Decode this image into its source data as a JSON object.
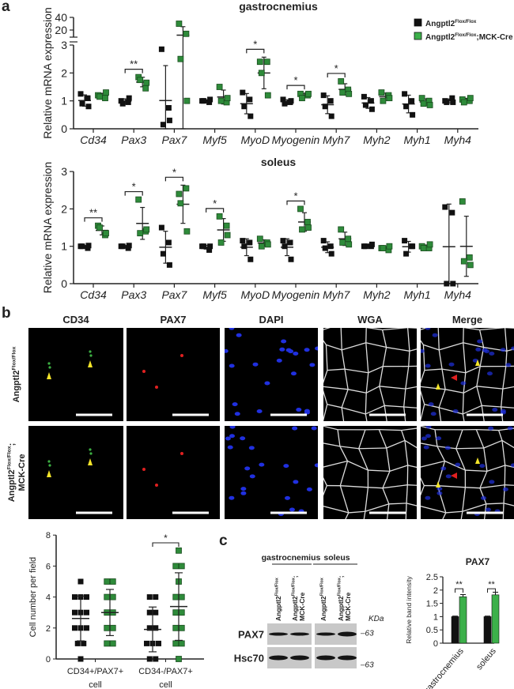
{
  "panel_labels": {
    "a": "a",
    "b": "b",
    "c": "c"
  },
  "colors": {
    "control": "#111111",
    "knockout": "#2e8b3a",
    "knockout_bar": "#3cb04a",
    "cd34": "#3cb043",
    "pax7": "#e02020",
    "dapi": "#1f5fd0",
    "wga": "#aaaaaa",
    "merge": "#111111",
    "arrow_yellow": "#f5e52a",
    "arrow_red": "#e02020"
  },
  "legend": [
    {
      "base": "Angptl2",
      "sup": "Flox/Flox",
      "suffix": ""
    },
    {
      "base": "Angptl2",
      "sup": "Flox/Flox",
      "suffix": ";MCK-Cre"
    }
  ],
  "chart_data": [
    {
      "type": "scatter",
      "title": "gastrocnemius",
      "ylabel": "Relative mRNA expression",
      "yticks": [
        0,
        1,
        2,
        3,
        20,
        40
      ],
      "ylim": [
        0,
        40
      ],
      "axis_break": [
        3,
        10
      ],
      "categories": [
        "Cd34",
        "Pax3",
        "Pax7",
        "Myf5",
        "MyoD",
        "Myogenin",
        "Myh7",
        "Myh2",
        "Myh1",
        "Myh4"
      ],
      "series": [
        {
          "name": "Angptl2 Flox/Flox",
          "values": [
            [
              1.25,
              1.1,
              0.9,
              0.8
            ],
            [
              1.0,
              0.95,
              0.9,
              1.1
            ],
            [
              2.85,
              0.75,
              0.15,
              0.3
            ],
            [
              1.0,
              0.95,
              1.0,
              1.05
            ],
            [
              1.3,
              1.05,
              0.8,
              0.45
            ],
            [
              1.05,
              0.95,
              0.9,
              1.0
            ],
            [
              1.2,
              1.0,
              0.8,
              0.45
            ],
            [
              1.15,
              1.0,
              0.85,
              0.7
            ],
            [
              1.25,
              1.0,
              0.8,
              0.5
            ],
            [
              1.0,
              1.1,
              0.95,
              0.95
            ]
          ]
        },
        {
          "name": "Angptl2 Flox/Flox;MCK-Cre",
          "values": [
            [
              1.2,
              1.1,
              1.15,
              1.3
            ],
            [
              1.85,
              1.45,
              1.75,
              1.65
            ],
            [
              30,
              14,
              2.5,
              1.0
            ],
            [
              1.5,
              0.95,
              1.0,
              1.1
            ],
            [
              2.4,
              2.4,
              2.0,
              1.2
            ],
            [
              1.25,
              1.2,
              1.1,
              1.25
            ],
            [
              1.7,
              1.4,
              1.3,
              1.25
            ],
            [
              1.3,
              1.2,
              1.0,
              1.1
            ],
            [
              1.1,
              1.0,
              0.9,
              0.85
            ],
            [
              1.05,
              1.0,
              0.95,
              1.1
            ]
          ]
        }
      ],
      "significance": [
        {
          "category": "Pax3",
          "label": "**"
        },
        {
          "category": "MyoD",
          "label": "*"
        },
        {
          "category": "Myogenin",
          "label": "*"
        },
        {
          "category": "Myh7",
          "label": "*"
        }
      ]
    },
    {
      "type": "scatter",
      "title": "soleus",
      "ylabel": "Relative mRNA expression",
      "yticks": [
        0,
        1,
        2,
        3
      ],
      "ylim": [
        0,
        3
      ],
      "categories": [
        "Cd34",
        "Pax3",
        "Pax7",
        "Myf5",
        "MyoD",
        "Myogenin",
        "Myh7",
        "Myh2",
        "Myh1",
        "Myh4"
      ],
      "series": [
        {
          "name": "Angptl2 Flox/Flox",
          "values": [
            [
              1.0,
              0.95,
              1.0,
              1.02
            ],
            [
              1.0,
              0.95,
              1.0,
              1.02
            ],
            [
              1.5,
              1.1,
              0.8,
              0.5
            ],
            [
              1.0,
              0.9,
              1.0,
              1.0
            ],
            [
              1.15,
              1.1,
              1.0,
              0.65
            ],
            [
              1.15,
              1.1,
              1.0,
              0.65
            ],
            [
              1.15,
              1.0,
              0.95,
              0.8
            ],
            [
              1.0,
              1.0,
              1.0,
              1.05
            ],
            [
              1.15,
              1.0,
              0.8,
              1.0
            ],
            [
              2.05,
              1.9,
              0.0,
              0.0
            ]
          ]
        },
        {
          "name": "Angptl2 Flox/Flox;MCK-Cre",
          "values": [
            [
              1.55,
              1.3,
              1.5,
              1.35
            ],
            [
              2.25,
              1.4,
              1.35,
              1.45
            ],
            [
              2.4,
              2.55,
              2.15,
              1.4
            ],
            [
              1.8,
              1.55,
              1.1,
              1.3
            ],
            [
              1.2,
              1.1,
              1.0,
              1.05
            ],
            [
              2.0,
              1.65,
              1.45,
              1.5
            ],
            [
              1.45,
              1.2,
              1.1,
              1.05
            ],
            [
              0.95,
              0.9,
              0.95,
              1.0
            ],
            [
              1.0,
              0.95,
              0.95,
              1.05
            ],
            [
              2.2,
              0.7,
              0.6,
              0.5
            ]
          ]
        }
      ],
      "significance": [
        {
          "category": "Cd34",
          "label": "**"
        },
        {
          "category": "Pax3",
          "label": "*"
        },
        {
          "category": "Pax7",
          "label": "*"
        },
        {
          "category": "Myf5",
          "label": "*"
        },
        {
          "category": "Myogenin",
          "label": "*"
        }
      ]
    },
    {
      "type": "scatter",
      "ylabel": "Cell number per field",
      "yticks": [
        0,
        2,
        4,
        6,
        8
      ],
      "ylim": [
        0,
        8
      ],
      "categories": [
        "CD34+/PAX7+\ncell",
        "CD34-/PAX7+\ncell"
      ],
      "series": [
        {
          "name": "Angptl2 Flox/Flox",
          "values": [
            [
              0,
              1,
              1,
              2,
              2,
              2,
              3,
              3,
              3,
              4,
              4,
              4,
              5
            ],
            [
              0,
              0,
              1,
              1,
              1,
              2,
              2,
              3,
              3,
              4,
              4
            ]
          ]
        },
        {
          "name": "Angptl2 Flox/Flox;MCK-Cre",
          "values": [
            [
              1,
              1,
              2,
              2,
              3,
              3,
              4,
              4,
              5,
              5
            ],
            [
              0,
              1,
              1,
              2,
              2,
              3,
              3,
              4,
              4,
              5,
              6,
              6,
              7
            ]
          ]
        }
      ],
      "significance": [
        {
          "category": "CD34-/PAX7+\ncell",
          "label": "*"
        }
      ]
    },
    {
      "type": "bar",
      "title": "PAX7",
      "ylabel": "Relative band intensity",
      "yticks": [
        "0",
        "0.5",
        "1",
        "1.5",
        "2",
        "2.5"
      ],
      "ylim": [
        0,
        2.5
      ],
      "categories": [
        "gastrocnemius",
        "soleus"
      ],
      "series": [
        {
          "name": "Angptl2 Flox/Flox",
          "values": [
            1.0,
            1.0
          ],
          "errors": [
            0.02,
            0.02
          ]
        },
        {
          "name": "Angptl2 Flox/Flox;MCK-Cre",
          "values": [
            1.75,
            1.82
          ],
          "errors": [
            0.08,
            0.1
          ]
        }
      ],
      "significance": [
        {
          "category": "gastrocnemius",
          "label": "**"
        },
        {
          "category": "soleus",
          "label": "**"
        }
      ]
    }
  ],
  "micrographs": {
    "channels": [
      "CD34",
      "PAX7",
      "DAPI",
      "WGA",
      "Merge"
    ],
    "rows": [
      {
        "base": "Angptl2",
        "sup": "Flox/Flox",
        "suffix": "",
        "line2": ""
      },
      {
        "base": "Angptl2",
        "sup": "Flox/Flox",
        "suffix": ";",
        "line2": "MCK-Cre"
      }
    ]
  },
  "blot": {
    "tissues": [
      "gastrocnemius",
      "soleus"
    ],
    "lanes": [
      {
        "base": "Angptl2",
        "sup": "Flox/Flox",
        "suffix": "",
        "line2": ""
      },
      {
        "base": "Angptl2",
        "sup": "Flox/Flox",
        "suffix": ";",
        "line2": "MCK-Cre"
      },
      {
        "base": "Angptl2",
        "sup": "Flox/Flox",
        "suffix": "",
        "line2": ""
      },
      {
        "base": "Angptl2",
        "sup": "Flox/Flox",
        "suffix": ";",
        "line2": "MCK-Cre"
      }
    ],
    "proteins": [
      "PAX7",
      "Hsc70"
    ],
    "unit": "KDa",
    "markers": [
      "63",
      "63"
    ]
  }
}
